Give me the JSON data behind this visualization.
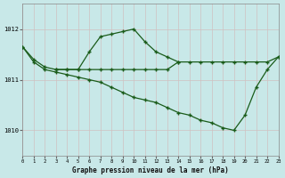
{
  "title": "Graphe pression niveau de la mer (hPa)",
  "bg_color": "#c8e8e8",
  "grid_color": "#b8d8d8",
  "line_color": "#1a5c1a",
  "xlim": [
    0,
    23
  ],
  "ylim": [
    1009.5,
    1012.5
  ],
  "yticks": [
    1010,
    1011,
    1012
  ],
  "xticks": [
    0,
    1,
    2,
    3,
    4,
    5,
    6,
    7,
    8,
    9,
    10,
    11,
    12,
    13,
    14,
    15,
    16,
    17,
    18,
    19,
    20,
    21,
    22,
    23
  ],
  "series": [
    {
      "x": [
        0,
        1,
        2,
        3,
        4,
        5,
        6,
        7,
        8,
        9,
        10,
        11,
        12,
        13,
        14
      ],
      "y": [
        1011.65,
        1011.4,
        1011.25,
        1011.2,
        1011.2,
        1011.2,
        1011.55,
        1011.85,
        1011.9,
        1011.95,
        1012.0,
        1011.75,
        1011.55,
        1011.45,
        1011.35
      ]
    },
    {
      "x": [
        0,
        1,
        2,
        3,
        4,
        5,
        6,
        7,
        8,
        9,
        10,
        11,
        12,
        13,
        14,
        15,
        16,
        17,
        18,
        19,
        20,
        21,
        22,
        23
      ],
      "y": [
        1011.65,
        1011.35,
        1011.2,
        1011.15,
        1011.1,
        1011.05,
        1011.0,
        1010.95,
        1010.85,
        1010.75,
        1010.65,
        1010.6,
        1010.55,
        1010.45,
        1010.35,
        1010.3,
        1010.2,
        1010.15,
        1010.05,
        1010.0,
        1010.3,
        1010.85,
        1011.2,
        1011.45
      ]
    },
    {
      "x": [
        3,
        4,
        5,
        6,
        7,
        8,
        9,
        10,
        11,
        12,
        13,
        14,
        15,
        16,
        17,
        18,
        19,
        20,
        21,
        22,
        23
      ],
      "y": [
        1011.2,
        1011.2,
        1011.2,
        1011.2,
        1011.2,
        1011.2,
        1011.2,
        1011.2,
        1011.2,
        1011.2,
        1011.2,
        1011.35,
        1011.35,
        1011.35,
        1011.35,
        1011.35,
        1011.35,
        1011.35,
        1011.35,
        1011.35,
        1011.45
      ]
    }
  ]
}
